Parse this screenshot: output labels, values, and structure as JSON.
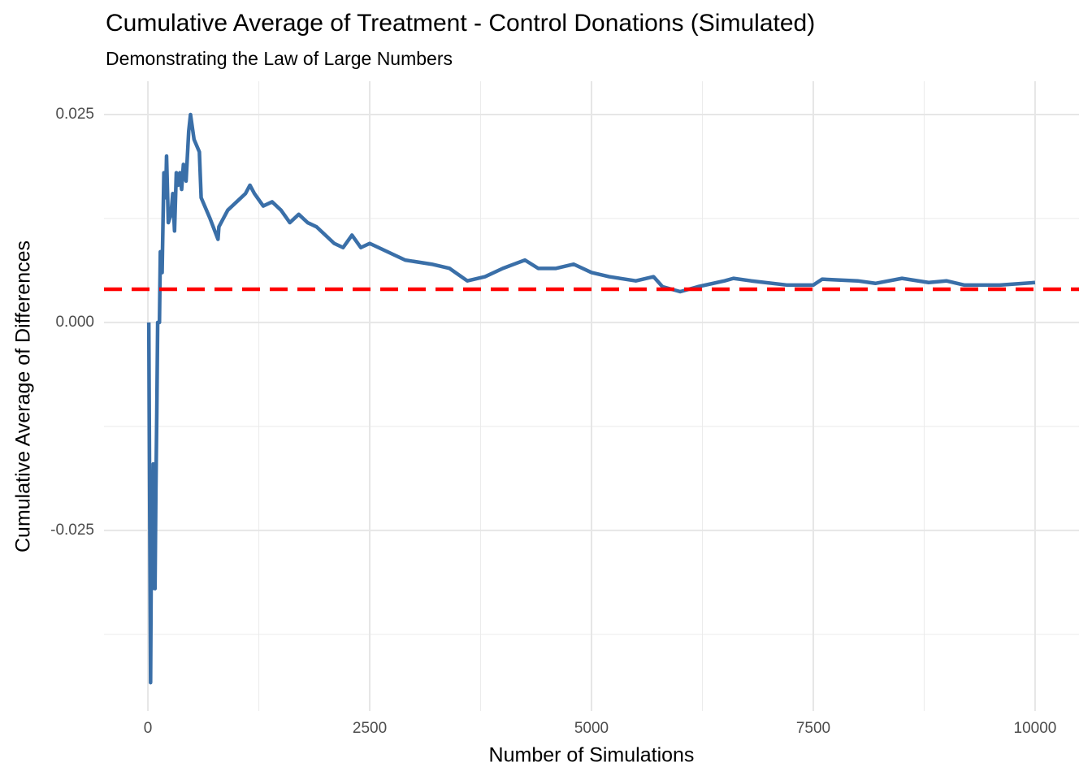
{
  "chart_data": {
    "type": "line",
    "title": "Cumulative Average of Treatment - Control Donations (Simulated)",
    "subtitle": "Demonstrating the Law of Large Numbers",
    "x_label": "Number of Simulations",
    "y_label": "Cumulative Average of Differences",
    "xlim": [
      -495,
      10495
    ],
    "ylim": [
      -0.0467,
      0.029
    ],
    "xticks": [
      0,
      2500,
      5000,
      7500,
      10000
    ],
    "yticks": [
      {
        "value": -0.025,
        "label": "-0.025"
      },
      {
        "value": 0,
        "label": "0.000"
      },
      {
        "value": 0.025,
        "label": "0.025"
      }
    ],
    "x_minor_ticks": [
      1250,
      3750,
      6250,
      8750
    ],
    "y_minor_ticks": [
      -0.0375,
      -0.0125,
      0.0125
    ],
    "grid": true,
    "reference_line": {
      "value": 0.004,
      "color": "#ff0000",
      "dashed": true
    },
    "series": [
      {
        "color": "#3a6fa8",
        "x": [
          10,
          30,
          40,
          50,
          60,
          80,
          90,
          100,
          110,
          130,
          140,
          160,
          180,
          200,
          210,
          230,
          260,
          280,
          300,
          320,
          340,
          360,
          380,
          400,
          430,
          460,
          480,
          520,
          580,
          600,
          700,
          790,
          800,
          900,
          1000,
          1100,
          1150,
          1200,
          1300,
          1400,
          1500,
          1600,
          1700,
          1800,
          1900,
          2000,
          2100,
          2200,
          2300,
          2400,
          2500,
          2700,
          2900,
          3200,
          3400,
          3600,
          3800,
          4000,
          4250,
          4400,
          4600,
          4800,
          5000,
          5200,
          5500,
          5700,
          5800,
          6000,
          6200,
          6500,
          6600,
          6800,
          7200,
          7500,
          7600,
          8000,
          8200,
          8500,
          8800,
          9000,
          9200,
          9600,
          10000
        ],
        "values": [
          0,
          -0.0433,
          -0.025,
          -0.032,
          -0.017,
          -0.032,
          -0.02,
          -0.011,
          0,
          0,
          0.0085,
          0.006,
          0.018,
          0.015,
          0.02,
          0.012,
          0.013,
          0.0155,
          0.011,
          0.018,
          0.0165,
          0.018,
          0.016,
          0.019,
          0.017,
          0.023,
          0.025,
          0.022,
          0.0205,
          0.015,
          0.0125,
          0.01,
          0.0115,
          0.0135,
          0.0145,
          0.0155,
          0.0165,
          0.0155,
          0.014,
          0.0145,
          0.0135,
          0.012,
          0.013,
          0.012,
          0.0115,
          0.0105,
          0.0095,
          0.009,
          0.0105,
          0.009,
          0.0095,
          0.0085,
          0.0075,
          0.007,
          0.0065,
          0.005,
          0.0055,
          0.0065,
          0.0075,
          0.0065,
          0.0065,
          0.007,
          0.006,
          0.0055,
          0.005,
          0.0055,
          0.0043,
          0.0037,
          0.0043,
          0.005,
          0.0053,
          0.005,
          0.0045,
          0.0045,
          0.0052,
          0.005,
          0.0047,
          0.0053,
          0.0048,
          0.005,
          0.0045,
          0.0045,
          0.0048
        ]
      }
    ]
  }
}
